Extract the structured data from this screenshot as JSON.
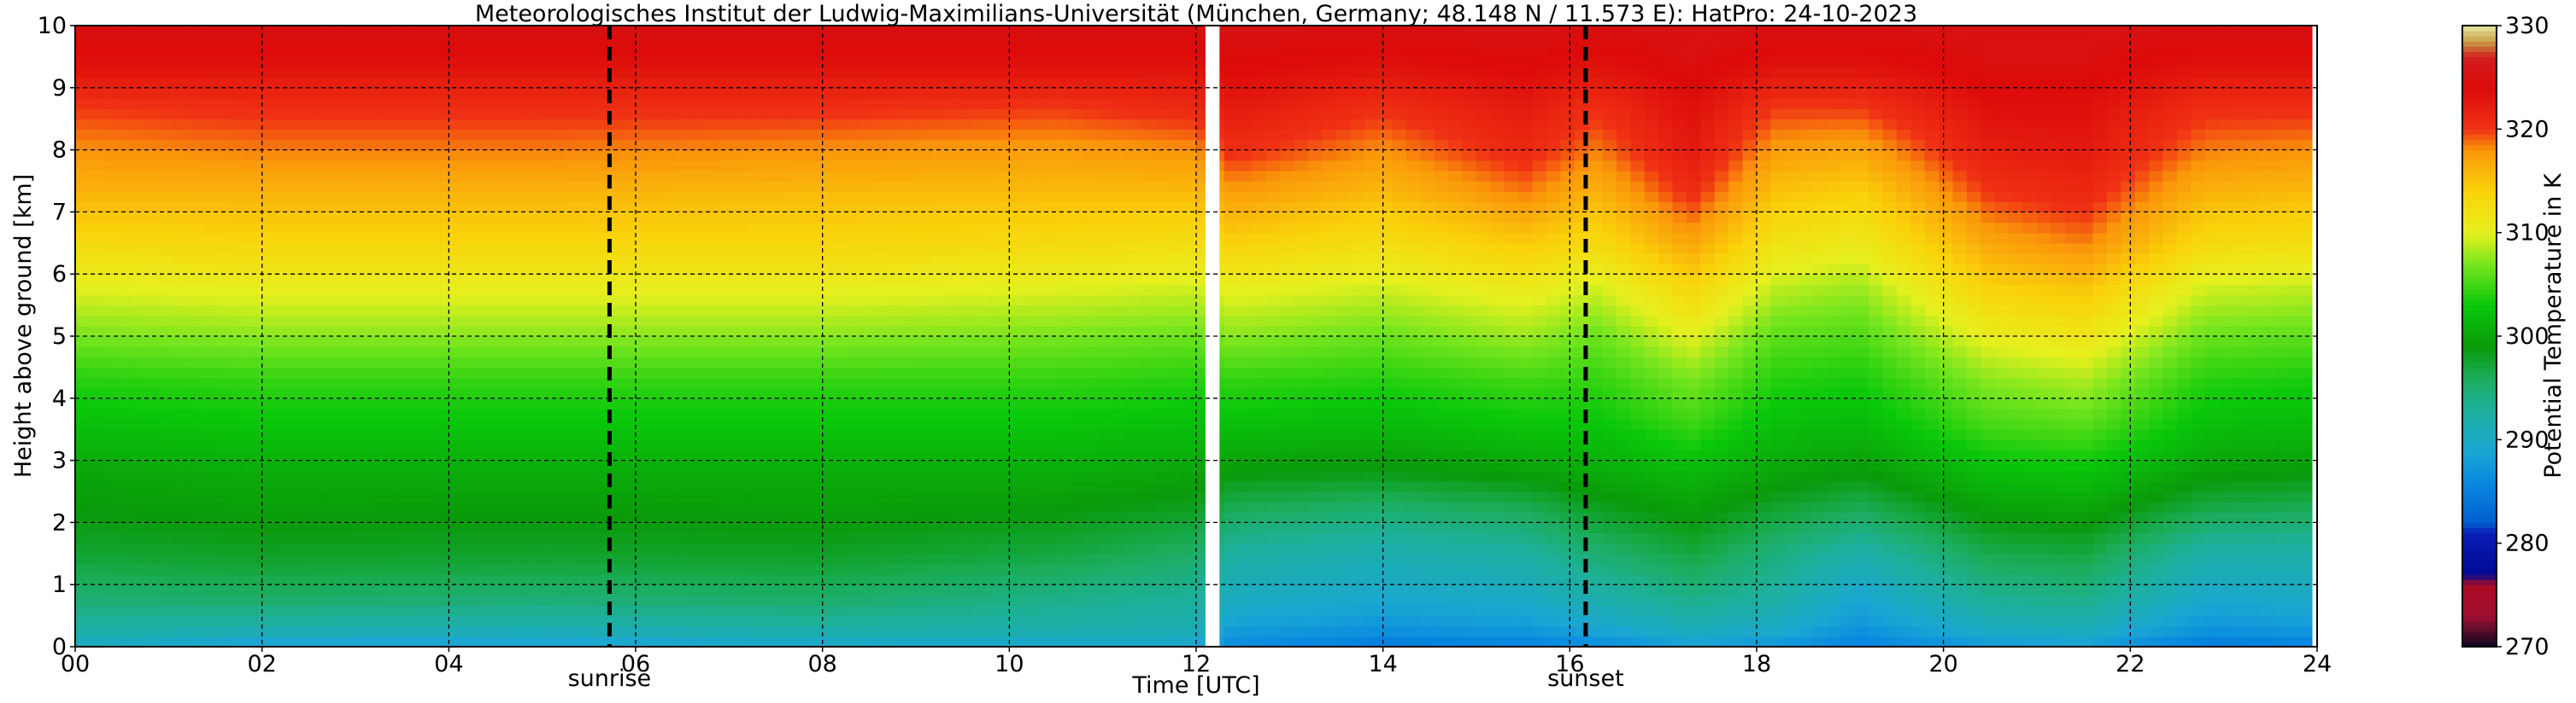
{
  "chart_data": {
    "type": "heatmap",
    "title": "Meteorologisches Institut der Ludwig-Maximilians-Universität (München, Germany; 48.148 N / 11.573 E):    HatPro: 24-10-2023",
    "xlabel": "Time [UTC]",
    "ylabel": "Height above ground [km]",
    "colorbar_label": "Potential Temperature in K",
    "xlim": [
      0,
      24
    ],
    "ylim": [
      0,
      10
    ],
    "clim": [
      270,
      330
    ],
    "x_ticks": [
      0,
      2,
      4,
      6,
      8,
      10,
      12,
      14,
      16,
      18,
      20,
      22,
      24
    ],
    "x_tick_labels": [
      "00",
      "02",
      "04",
      "06",
      "08",
      "10",
      "12",
      "14",
      "16",
      "18",
      "20",
      "22",
      "24"
    ],
    "y_ticks": [
      0,
      1,
      2,
      3,
      4,
      5,
      6,
      7,
      8,
      9,
      10
    ],
    "y_tick_labels": [
      "0",
      "1",
      "2",
      "3",
      "4",
      "5",
      "6",
      "7",
      "8",
      "9",
      "10"
    ],
    "colorbar_ticks": [
      270,
      280,
      290,
      300,
      310,
      320,
      330
    ],
    "colorbar_tick_labels": [
      "270",
      "280",
      "290",
      "300",
      "310",
      "320",
      "330"
    ],
    "grid": true,
    "annotations": [
      {
        "label": "sunrise",
        "x": 5.72
      },
      {
        "label": "sunset",
        "x": 16.17
      }
    ],
    "data_gaps": [
      [
        12.1,
        12.25
      ],
      [
        23.95,
        24.0
      ]
    ],
    "color_scale": [
      {
        "value": 270,
        "color": "#0a0820"
      },
      {
        "value": 273,
        "color": "#a01030"
      },
      {
        "value": 276,
        "color": "#aa0a22"
      },
      {
        "value": 277,
        "color": "#000a95"
      },
      {
        "value": 281,
        "color": "#0a1eb4"
      },
      {
        "value": 282,
        "color": "#005fd0"
      },
      {
        "value": 286,
        "color": "#0a8ae0"
      },
      {
        "value": 289,
        "color": "#1ba7d2"
      },
      {
        "value": 293,
        "color": "#1eb09c"
      },
      {
        "value": 296,
        "color": "#1bad5a"
      },
      {
        "value": 299,
        "color": "#0a9a0a"
      },
      {
        "value": 303,
        "color": "#0ac80a"
      },
      {
        "value": 307,
        "color": "#78e61e"
      },
      {
        "value": 310,
        "color": "#e6f01e"
      },
      {
        "value": 314,
        "color": "#fad20a"
      },
      {
        "value": 318,
        "color": "#fa960a"
      },
      {
        "value": 320,
        "color": "#f03214"
      },
      {
        "value": 324,
        "color": "#dc0a0a"
      },
      {
        "value": 327,
        "color": "#d21e1e"
      },
      {
        "value": 328.5,
        "color": "#c8a046"
      },
      {
        "value": 330,
        "color": "#e6e6a0"
      }
    ],
    "profile_heights_km": [
      0,
      0.3,
      0.8,
      1.5,
      2.2,
      2.8,
      3.5,
      4.3,
      5,
      5.8,
      6.5,
      7.3,
      8,
      8.7,
      9.3,
      10
    ],
    "profiles": [
      {
        "time": 0.0,
        "theta": [
          290,
          292.5,
          295,
          297.5,
          299,
          300,
          302,
          304,
          307,
          310,
          313,
          316,
          318,
          320,
          323,
          325
        ]
      },
      {
        "time": 2.0,
        "theta": [
          288,
          292,
          295.5,
          298,
          299.5,
          300.5,
          302.5,
          304.5,
          307.5,
          310.5,
          313.5,
          316,
          318.5,
          320.5,
          323,
          325
        ]
      },
      {
        "time": 5.0,
        "theta": [
          288,
          291.5,
          295,
          297.8,
          299.2,
          300.5,
          302.5,
          304.5,
          307.5,
          310.5,
          313.5,
          316,
          318.5,
          320.5,
          323,
          325
        ]
      },
      {
        "time": 8.0,
        "theta": [
          289,
          292.5,
          295.5,
          298,
          299.5,
          300.5,
          302.5,
          304.5,
          307.5,
          310.5,
          313.5,
          315.5,
          318,
          320.5,
          323,
          325
        ]
      },
      {
        "time": 10.5,
        "theta": [
          289,
          292,
          294,
          297,
          299,
          300.5,
          302.5,
          304.5,
          307,
          310,
          313,
          315.5,
          317.5,
          320,
          323,
          325
        ]
      },
      {
        "time": 12.0,
        "theta": [
          289,
          291.5,
          293,
          295.5,
          298,
          300,
          302,
          304,
          306.5,
          309.5,
          312.5,
          315.5,
          318,
          321,
          323,
          325
        ]
      },
      {
        "time": 12.4,
        "theta": [
          286,
          288,
          290.5,
          292.5,
          296,
          299,
          302,
          304.5,
          307.5,
          310.5,
          314,
          317.5,
          320.5,
          322.5,
          324,
          325
        ]
      },
      {
        "time": 14.0,
        "theta": [
          284.5,
          287,
          289.5,
          291.5,
          295,
          298.5,
          301.5,
          304,
          306.5,
          309.5,
          312.5,
          315.5,
          318,
          320.5,
          323,
          325
        ]
      },
      {
        "time": 15.5,
        "theta": [
          285,
          287.5,
          290,
          292.5,
          296,
          299.5,
          302.5,
          305,
          308,
          311,
          314.5,
          318.5,
          321,
          322.5,
          324,
          325
        ]
      },
      {
        "time": 16.3,
        "theta": [
          286,
          289,
          292,
          295,
          298,
          300.5,
          302.5,
          304.5,
          306.5,
          309.5,
          313,
          316,
          318.5,
          320.5,
          323,
          325
        ]
      },
      {
        "time": 17.3,
        "theta": [
          288,
          291,
          294,
          297,
          299.5,
          301.5,
          304.5,
          307,
          310,
          313.5,
          317,
          320.5,
          322.5,
          323.5,
          324.5,
          325
        ]
      },
      {
        "time": 18.2,
        "theta": [
          287,
          290,
          292.5,
          294.5,
          297.5,
          300,
          302,
          304,
          306,
          309,
          312,
          315,
          317.5,
          320,
          323,
          325
        ]
      },
      {
        "time": 19.1,
        "theta": [
          285,
          287,
          289,
          292,
          296,
          299,
          301.5,
          303.5,
          305.5,
          308,
          311,
          314,
          317,
          320,
          323,
          325
        ]
      },
      {
        "time": 20.5,
        "theta": [
          287.5,
          290.5,
          293.5,
          296.5,
          299.5,
          302,
          305,
          307.5,
          310.5,
          314,
          317,
          320,
          322,
          323.5,
          324.5,
          325
        ]
      },
      {
        "time": 21.5,
        "theta": [
          288,
          291,
          294,
          297,
          300,
          302.5,
          305.5,
          308.5,
          311.5,
          315,
          318.5,
          321,
          322.5,
          323.5,
          324.5,
          325
        ]
      },
      {
        "time": 22.8,
        "theta": [
          284.5,
          287,
          289.5,
          292,
          296.5,
          299.5,
          302,
          304,
          306.5,
          309.5,
          313,
          316,
          318.5,
          320.5,
          323,
          325
        ]
      },
      {
        "time": 24.0,
        "theta": [
          285,
          287.5,
          290,
          292,
          296,
          299,
          301.5,
          303.5,
          306,
          309,
          312.5,
          315.5,
          318,
          320.5,
          323,
          325
        ]
      }
    ]
  }
}
